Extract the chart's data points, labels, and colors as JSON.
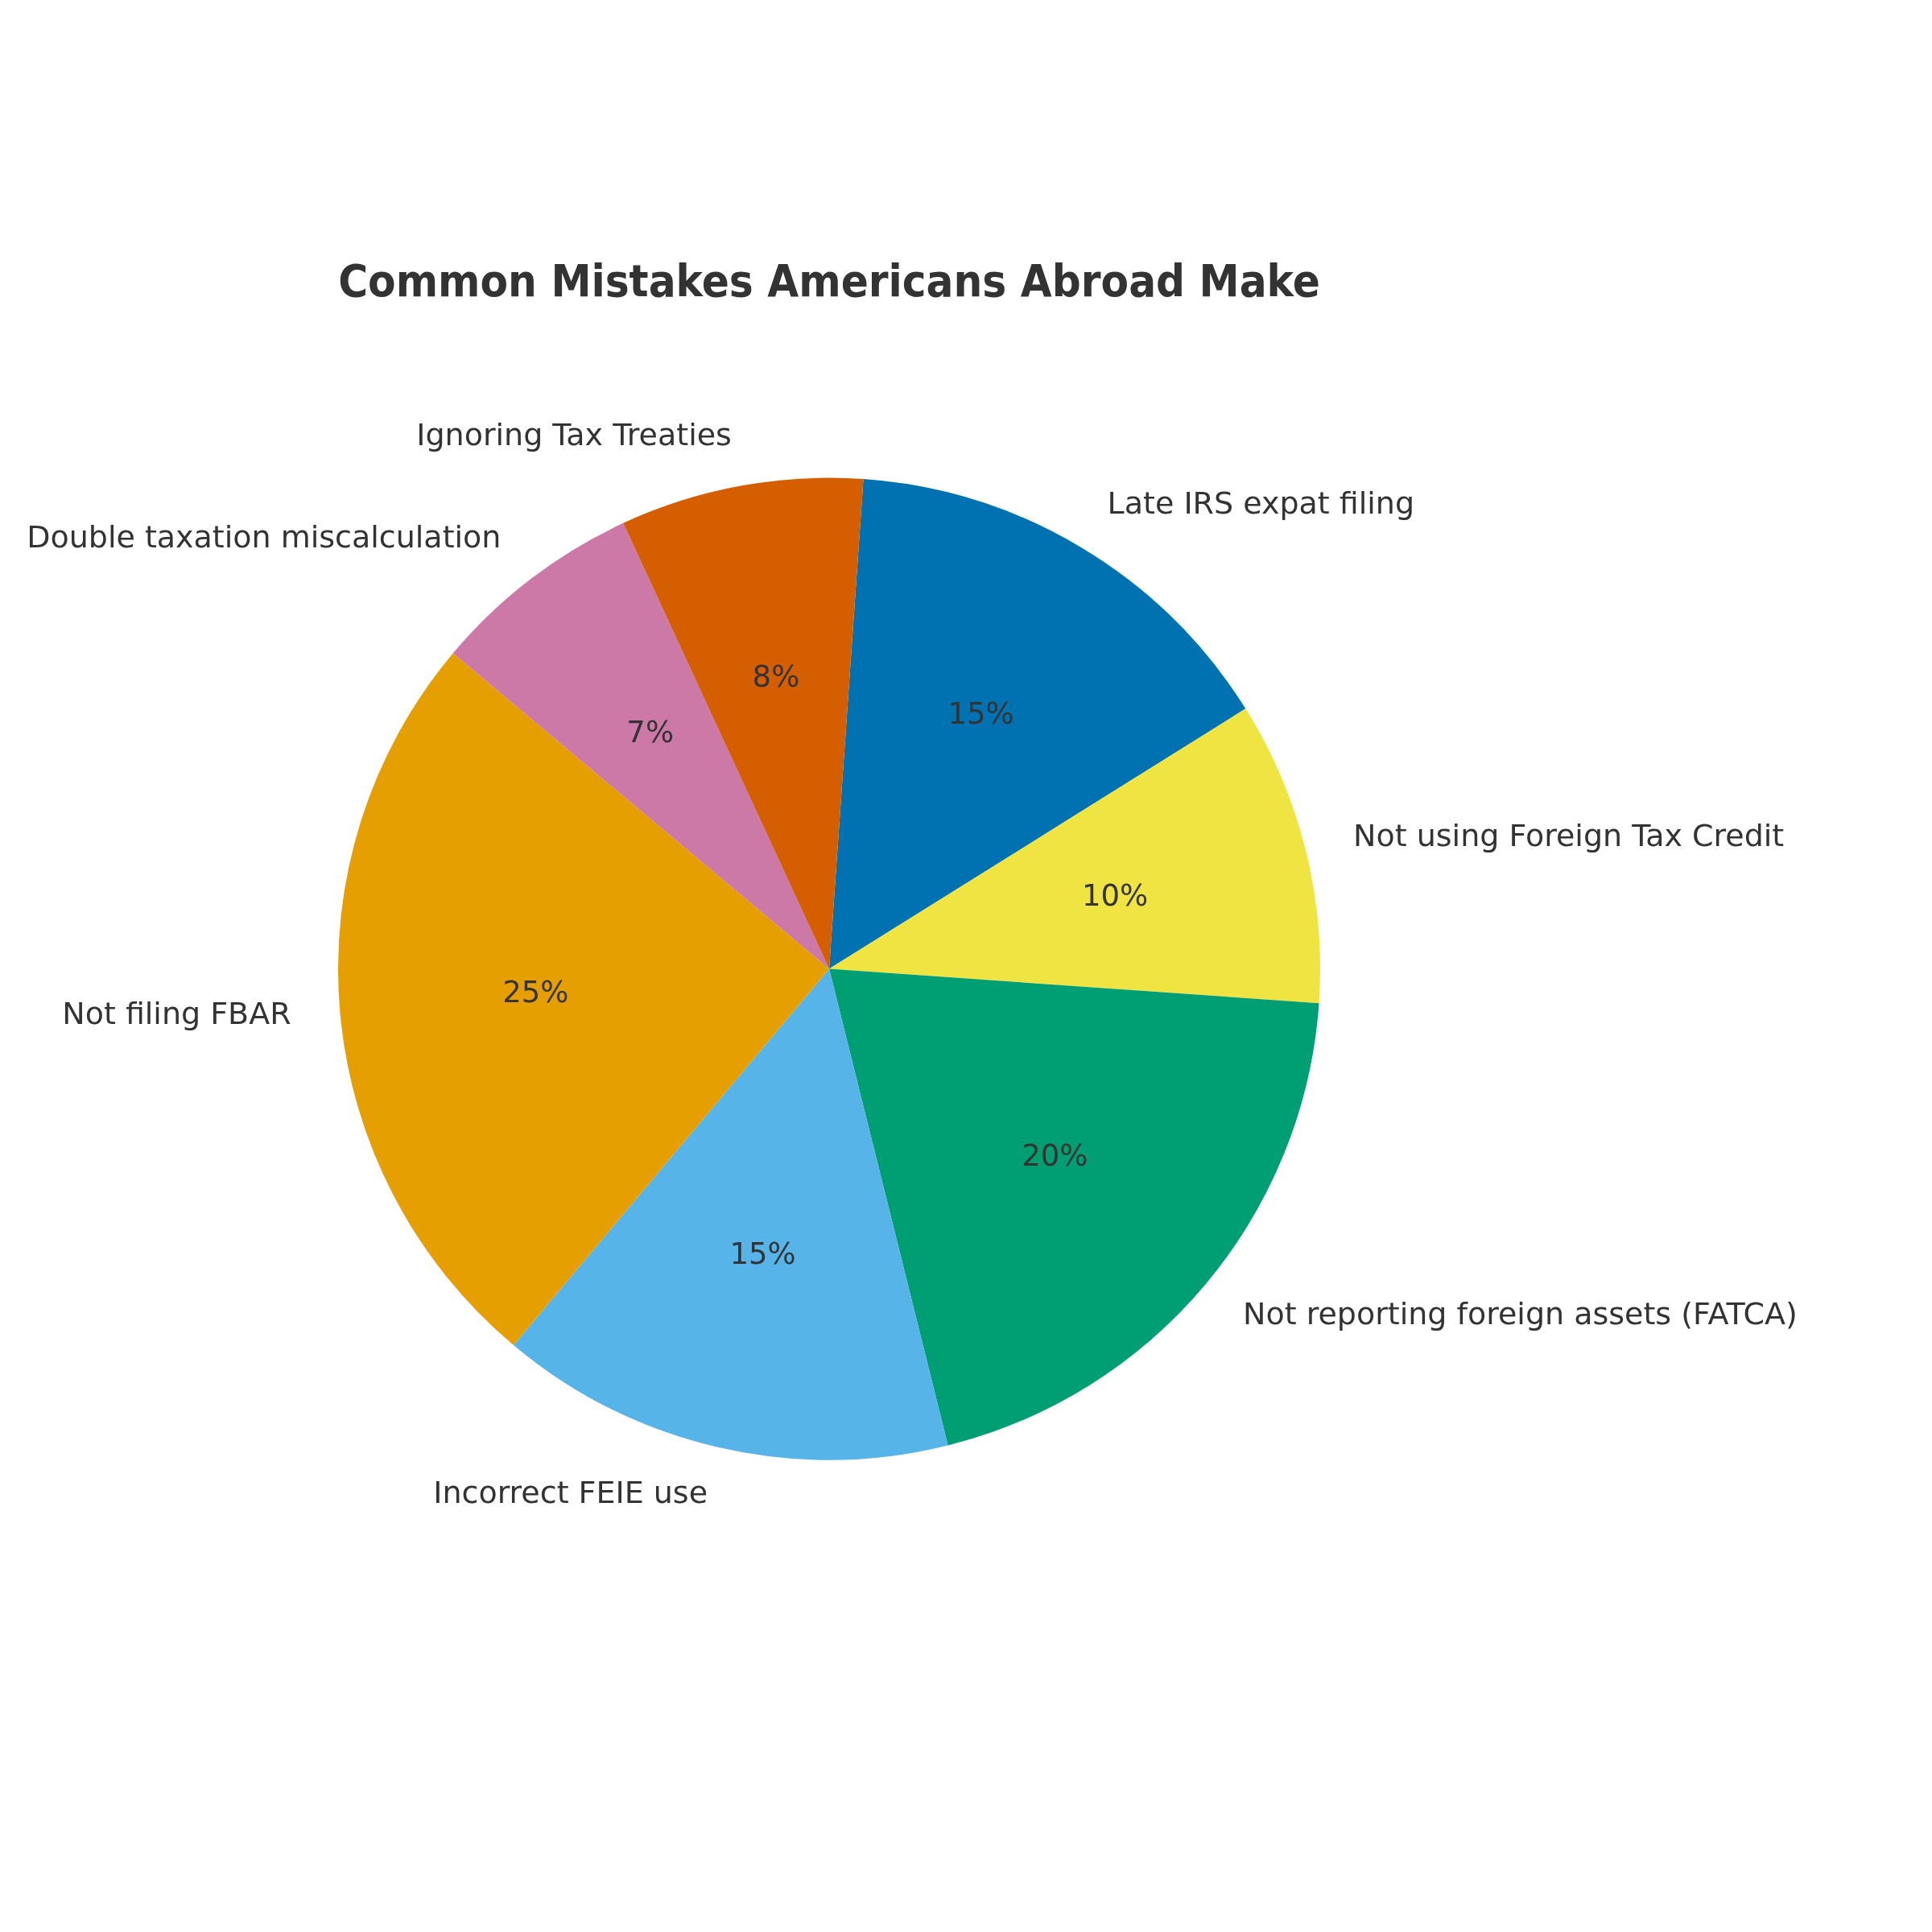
{
  "chart_data": {
    "type": "pie",
    "title": "Common Mistakes Americans Abroad Make",
    "categories": [
      "Late IRS expat filing",
      "Not using Foreign Tax Credit",
      "Not reporting foreign assets (FATCA)",
      "Incorrect FEIE use",
      "Not filing FBAR",
      "Double taxation miscalculation",
      "Ignoring Tax Treaties"
    ],
    "values": [
      15,
      10,
      20,
      15,
      25,
      7,
      8
    ],
    "colors": [
      "#0072b2",
      "#f0e442",
      "#009e73",
      "#56b4e9",
      "#e69f00",
      "#cc79a7",
      "#d55e00"
    ],
    "value_labels": [
      "15%",
      "10%",
      "20%",
      "15%",
      "25%",
      "7%",
      "8%"
    ],
    "legend": false
  }
}
